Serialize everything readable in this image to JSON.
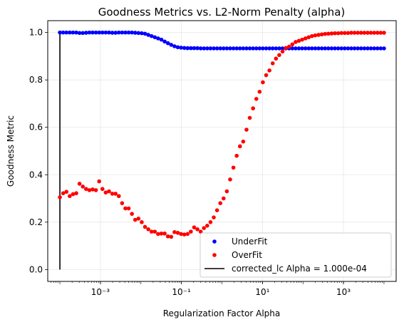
{
  "chart_data": {
    "type": "scatter",
    "title": "Goodness Metrics vs. L2-Norm Penalty (alpha)",
    "xlabel": "Regularization Factor Alpha",
    "ylabel": "Goodness Metric",
    "xscale": "log",
    "xlim": [
      5.01e-05,
      19953
    ],
    "ylim": [
      -0.05,
      1.05
    ],
    "grid": true,
    "legend_position": "lower-right",
    "x_ticks": [
      {
        "value": 0.001,
        "label": "10⁻³"
      },
      {
        "value": 0.1,
        "label": "10⁻¹"
      },
      {
        "value": 10,
        "label": "10¹"
      },
      {
        "value": 1000,
        "label": "10³"
      }
    ],
    "y_ticks": [
      {
        "value": 0.0,
        "label": "0.0"
      },
      {
        "value": 0.2,
        "label": "0.2"
      },
      {
        "value": 0.4,
        "label": "0.4"
      },
      {
        "value": 0.6,
        "label": "0.6"
      },
      {
        "value": 0.8,
        "label": "0.8"
      },
      {
        "value": 1.0,
        "label": "1.0"
      }
    ],
    "series": [
      {
        "name": "UnderFit",
        "color": "#0000ff",
        "marker": "circle",
        "x_range": [
          0.0001,
          10000
        ],
        "n_points": 100,
        "values": [
          1.0,
          1.0,
          1.0,
          1.0,
          1.0,
          1.0,
          0.998,
          0.998,
          0.999,
          1.0,
          1.0,
          1.0,
          1.0,
          1.0,
          1.0,
          1.0,
          0.999,
          0.999,
          1.0,
          1.0,
          1.0,
          1.0,
          1.0,
          0.999,
          0.998,
          0.997,
          0.995,
          0.99,
          0.985,
          0.98,
          0.975,
          0.97,
          0.962,
          0.955,
          0.948,
          0.942,
          0.938,
          0.936,
          0.935,
          0.934,
          0.934,
          0.934,
          0.934,
          0.933,
          0.933,
          0.933,
          0.933,
          0.933,
          0.933,
          0.933,
          0.933,
          0.933,
          0.933,
          0.933,
          0.933,
          0.933,
          0.933,
          0.933,
          0.933,
          0.933,
          0.933,
          0.933,
          0.933,
          0.933,
          0.933,
          0.933,
          0.933,
          0.933,
          0.933,
          0.933,
          0.933,
          0.933,
          0.933,
          0.933,
          0.933,
          0.933,
          0.933,
          0.933,
          0.933,
          0.933,
          0.933,
          0.933,
          0.933,
          0.933,
          0.933,
          0.933,
          0.933,
          0.933,
          0.933,
          0.933,
          0.933,
          0.933,
          0.933,
          0.933,
          0.933,
          0.933,
          0.933,
          0.933,
          0.933,
          0.933
        ]
      },
      {
        "name": "OverFit",
        "color": "#ff0000",
        "marker": "circle",
        "x_range": [
          0.0001,
          10000
        ],
        "n_points": 100,
        "values": [
          0.305,
          0.322,
          0.328,
          0.31,
          0.318,
          0.322,
          0.362,
          0.35,
          0.34,
          0.335,
          0.338,
          0.335,
          0.372,
          0.34,
          0.325,
          0.33,
          0.32,
          0.32,
          0.31,
          0.28,
          0.258,
          0.258,
          0.235,
          0.21,
          0.215,
          0.2,
          0.18,
          0.17,
          0.16,
          0.16,
          0.15,
          0.152,
          0.152,
          0.14,
          0.138,
          0.158,
          0.155,
          0.15,
          0.148,
          0.15,
          0.16,
          0.178,
          0.17,
          0.16,
          0.175,
          0.185,
          0.2,
          0.22,
          0.25,
          0.28,
          0.3,
          0.33,
          0.38,
          0.43,
          0.48,
          0.52,
          0.54,
          0.59,
          0.64,
          0.68,
          0.72,
          0.75,
          0.79,
          0.82,
          0.84,
          0.87,
          0.89,
          0.905,
          0.92,
          0.935,
          0.94,
          0.95,
          0.96,
          0.965,
          0.97,
          0.975,
          0.98,
          0.985,
          0.988,
          0.99,
          0.992,
          0.994,
          0.995,
          0.996,
          0.997,
          0.997,
          0.998,
          0.998,
          0.998,
          0.999,
          0.999,
          0.999,
          0.999,
          0.999,
          0.999,
          0.999,
          0.999,
          0.999,
          0.999,
          0.999
        ]
      }
    ],
    "vline": {
      "name": "corrected_lc Alpha = 1.000e-04",
      "color": "#000000",
      "x": 0.0001,
      "y_range": [
        0.0,
        1.0
      ]
    }
  }
}
